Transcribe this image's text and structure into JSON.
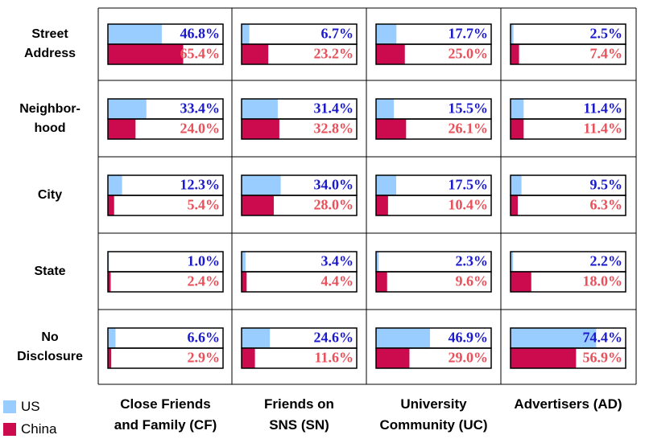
{
  "chart_data": {
    "type": "bar-grid",
    "rows": [
      "Street Address",
      "Neighbor-hood",
      "City",
      "State",
      "No Disclosure"
    ],
    "columns": [
      "Close Friends and Family (CF)",
      "Friends on SNS (SN)",
      "University Community (UC)",
      "Advertisers (AD)"
    ],
    "xlim": [
      0,
      100
    ],
    "series": [
      {
        "name": "US",
        "color": "#99ccff",
        "label_color": "#1a1acc",
        "values": [
          [
            46.8,
            6.7,
            17.7,
            2.5
          ],
          [
            33.4,
            31.4,
            15.5,
            11.4
          ],
          [
            12.3,
            34.0,
            17.5,
            9.5
          ],
          [
            1.0,
            3.4,
            2.3,
            2.2
          ],
          [
            6.6,
            24.6,
            46.9,
            74.4
          ]
        ],
        "value_labels": [
          [
            "46.8%",
            "6.7%",
            "17.7%",
            "2.5%"
          ],
          [
            "33.4%",
            "31.4%",
            "15.5%",
            "11.4%"
          ],
          [
            "12.3%",
            "34.0%",
            "17.5%",
            "9.5%"
          ],
          [
            "1.0%",
            "3.4%",
            "2.3%",
            "2.2%"
          ],
          [
            "6.6%",
            "24.6%",
            "46.9%",
            "74.4%"
          ]
        ]
      },
      {
        "name": "China",
        "color": "#cc0a4e",
        "label_color": "#e8505a",
        "values": [
          [
            65.4,
            23.2,
            25.0,
            7.4
          ],
          [
            24.0,
            32.8,
            26.1,
            11.4
          ],
          [
            5.4,
            28.0,
            10.4,
            6.3
          ],
          [
            2.4,
            4.4,
            9.6,
            18.0
          ],
          [
            2.9,
            11.6,
            29.0,
            56.9
          ]
        ],
        "value_labels": [
          [
            "65.4%",
            "23.2%",
            "25.0%",
            "7.4%"
          ],
          [
            "24.0%",
            "32.8%",
            "26.1%",
            "11.4%"
          ],
          [
            "5.4%",
            "28.0%",
            "10.4%",
            "6.3%"
          ],
          [
            "2.4%",
            "4.4%",
            "9.6%",
            "18.0%"
          ],
          [
            "2.9%",
            "11.6%",
            "29.0%",
            "56.9%"
          ]
        ]
      }
    ]
  }
}
